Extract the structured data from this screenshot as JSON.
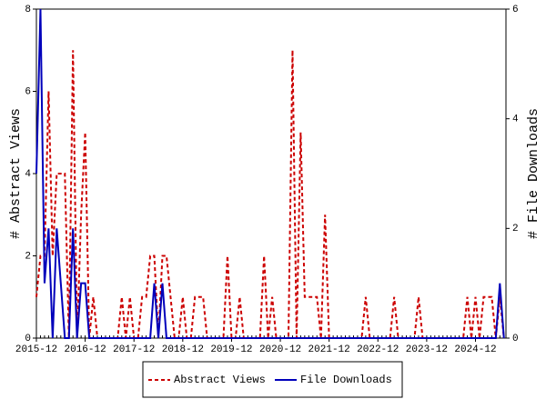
{
  "chart_data": {
    "type": "line",
    "y_label": "# Abstract Views",
    "y2_label": "# File Downloads",
    "x": [
      "2015-12",
      "2016-01",
      "2016-02",
      "2016-03",
      "2016-04",
      "2016-05",
      "2016-06",
      "2016-07",
      "2016-08",
      "2016-09",
      "2016-10",
      "2016-11",
      "2016-12",
      "2017-01",
      "2017-02",
      "2017-03",
      "2017-04",
      "2017-05",
      "2017-06",
      "2017-07",
      "2017-08",
      "2017-09",
      "2017-10",
      "2017-11",
      "2017-12",
      "2018-01",
      "2018-02",
      "2018-03",
      "2018-04",
      "2018-05",
      "2018-06",
      "2018-07",
      "2018-08",
      "2018-09",
      "2018-10",
      "2018-11",
      "2018-12",
      "2019-01",
      "2019-02",
      "2019-03",
      "2019-04",
      "2019-05",
      "2019-06",
      "2019-07",
      "2019-08",
      "2019-09",
      "2019-10",
      "2019-11",
      "2019-12",
      "2020-01",
      "2020-02",
      "2020-03",
      "2020-04",
      "2020-05",
      "2020-06",
      "2020-07",
      "2020-08",
      "2020-09",
      "2020-10",
      "2020-11",
      "2020-12",
      "2021-01",
      "2021-02",
      "2021-03",
      "2021-04",
      "2021-05",
      "2021-06",
      "2021-07",
      "2021-08",
      "2021-09",
      "2021-10",
      "2021-11",
      "2021-12",
      "2022-01",
      "2022-02",
      "2022-03",
      "2022-04",
      "2022-05",
      "2022-06",
      "2022-07",
      "2022-08",
      "2022-09",
      "2022-10",
      "2022-11",
      "2022-12",
      "2023-01",
      "2023-02",
      "2023-03",
      "2023-04",
      "2023-05",
      "2023-06",
      "2023-07",
      "2023-08",
      "2023-09",
      "2023-10",
      "2023-11",
      "2023-12",
      "2024-01",
      "2024-02",
      "2024-03",
      "2024-04",
      "2024-05",
      "2024-06",
      "2024-07",
      "2024-08",
      "2024-09",
      "2024-10",
      "2024-11",
      "2024-12",
      "2025-01",
      "2025-02",
      "2025-03",
      "2025-04",
      "2025-05",
      "2025-06",
      "2025-07"
    ],
    "xticks": [
      "2015-12",
      "2016-12",
      "2017-12",
      "2018-12",
      "2019-12",
      "2020-12",
      "2021-12",
      "2022-12",
      "2023-12",
      "2024-12"
    ],
    "series": [
      {
        "name": "Abstract Views",
        "color": "#cc0000",
        "dash": true,
        "values": [
          1,
          2,
          2,
          6,
          2,
          4,
          4,
          4,
          0,
          7,
          0,
          3,
          5,
          0,
          1,
          0,
          0,
          0,
          0,
          0,
          0,
          1,
          0,
          1,
          0,
          0,
          1,
          1,
          2,
          2,
          0,
          2,
          2,
          1,
          0,
          0,
          1,
          0,
          0,
          1,
          1,
          1,
          0,
          0,
          0,
          0,
          0,
          2,
          0,
          0,
          1,
          0,
          0,
          0,
          0,
          0,
          2,
          0,
          1,
          0,
          0,
          0,
          0,
          7,
          0,
          5,
          1,
          1,
          1,
          1,
          0,
          3,
          0,
          0,
          0,
          0,
          0,
          0,
          0,
          0,
          0,
          1,
          0,
          0,
          0,
          0,
          0,
          0,
          1,
          0,
          0,
          0,
          0,
          0,
          1,
          0,
          0,
          0,
          0,
          0,
          0,
          0,
          0,
          0,
          0,
          0,
          1,
          0,
          1,
          0,
          1,
          1,
          1,
          0,
          1,
          0
        ]
      },
      {
        "name": "File Downloads",
        "color": "#0000bb",
        "dash": false,
        "axis": "y2",
        "values": [
          3,
          6,
          1,
          2,
          0,
          2,
          1,
          0,
          0,
          2,
          0,
          1,
          1,
          0,
          0,
          0,
          0,
          0,
          0,
          0,
          0,
          0,
          0,
          0,
          0,
          0,
          0,
          0,
          0,
          1,
          0,
          1,
          0,
          0,
          0,
          0,
          0,
          0,
          0,
          0,
          0,
          0,
          0,
          0,
          0,
          0,
          0,
          0,
          0,
          0,
          0,
          0,
          0,
          0,
          0,
          0,
          0,
          0,
          0,
          0,
          0,
          0,
          0,
          0,
          0,
          0,
          0,
          0,
          0,
          0,
          0,
          0,
          0,
          0,
          0,
          0,
          0,
          0,
          0,
          0,
          0,
          0,
          0,
          0,
          0,
          0,
          0,
          0,
          0,
          0,
          0,
          0,
          0,
          0,
          0,
          0,
          0,
          0,
          0,
          0,
          0,
          0,
          0,
          0,
          0,
          0,
          0,
          0,
          0,
          0,
          0,
          0,
          0,
          0,
          1,
          0
        ]
      }
    ],
    "ylim": [
      0,
      8
    ],
    "yticks": [
      0,
      2,
      4,
      6,
      8
    ],
    "y2lim": [
      0,
      6
    ],
    "y2ticks": [
      0,
      2,
      4,
      6
    ],
    "legend": "bottom"
  }
}
